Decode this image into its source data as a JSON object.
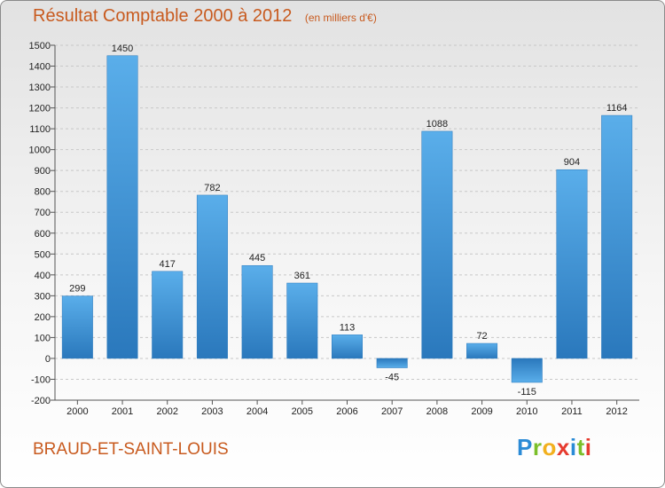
{
  "header": {
    "title": "Résultat Comptable 2000 à 2012",
    "unit": "(en milliers d'€)"
  },
  "footer": {
    "commune": "BRAUD-ET-SAINT-LOUIS",
    "logo_letters": [
      "P",
      "r",
      "o",
      "x",
      "i",
      "t",
      "i"
    ],
    "logo_colors": [
      "#2b8bd6",
      "#7bbf2a",
      "#f2b01e",
      "#e63a2e",
      "#2b8bd6",
      "#7bbf2a",
      "#e63a2e"
    ]
  },
  "colors": {
    "bar": "#4a9fe0",
    "bar_dark": "#2f7fc4",
    "title": "#c85a1e"
  },
  "chart_data": {
    "type": "bar",
    "title": "Résultat Comptable 2000 à 2012",
    "categories": [
      "2000",
      "2001",
      "2002",
      "2003",
      "2004",
      "2005",
      "2006",
      "2007",
      "2008",
      "2009",
      "2010",
      "2011",
      "2012"
    ],
    "values": [
      299,
      1450,
      417,
      782,
      445,
      361,
      113,
      -45,
      1088,
      72,
      -115,
      904,
      1164
    ],
    "data_labels": [
      "299",
      "1450",
      "417",
      "782",
      "445",
      "361",
      "113",
      "-45",
      "1088",
      "72",
      "-115",
      "904",
      "1164"
    ],
    "ylim": [
      -200,
      1500
    ],
    "yticks": [
      -200,
      -100,
      0,
      100,
      200,
      300,
      400,
      500,
      600,
      700,
      800,
      900,
      1000,
      1100,
      1200,
      1300,
      1400,
      1500
    ],
    "grid": true,
    "xlabel": "",
    "ylabel": ""
  }
}
